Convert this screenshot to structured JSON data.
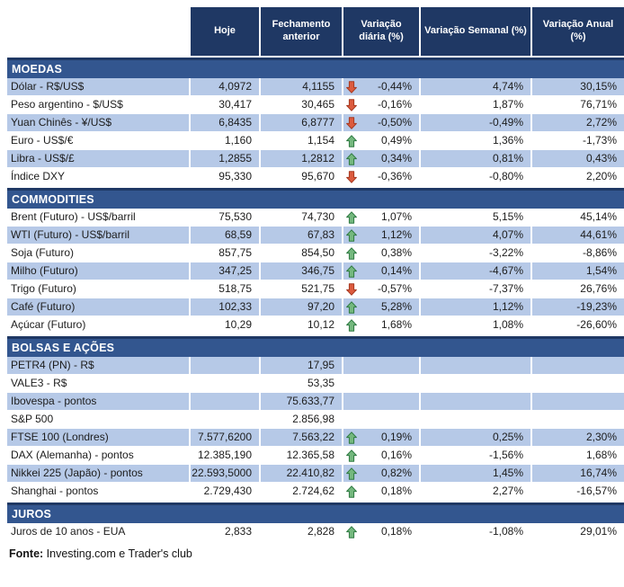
{
  "chart_data": {
    "type": "table",
    "columns": [
      "Hoje",
      "Fechamento anterior",
      "Variação diária (%)",
      "Variação Semanal (%)",
      "Variação Anual (%)"
    ],
    "sections": [
      {
        "title": "MOEDAS",
        "rows": [
          {
            "label": "Dólar - R$/US$",
            "hoje": "4,0972",
            "fechamento": "4,1155",
            "trend": "down",
            "diaria": "-0,44%",
            "semanal": "4,74%",
            "anual": "30,15%",
            "shaded": true
          },
          {
            "label": "Peso argentino - $/US$",
            "hoje": "30,417",
            "fechamento": "30,465",
            "trend": "down",
            "diaria": "-0,16%",
            "semanal": "1,87%",
            "anual": "76,71%",
            "shaded": false
          },
          {
            "label": "Yuan Chinês - ¥/US$",
            "hoje": "6,8435",
            "fechamento": "6,8777",
            "trend": "down",
            "diaria": "-0,50%",
            "semanal": "-0,49%",
            "anual": "2,72%",
            "shaded": true
          },
          {
            "label": "Euro - US$/€",
            "hoje": "1,160",
            "fechamento": "1,154",
            "trend": "up",
            "diaria": "0,49%",
            "semanal": "1,36%",
            "anual": "-1,73%",
            "shaded": false
          },
          {
            "label": "Libra - US$/£",
            "hoje": "1,2855",
            "fechamento": "1,2812",
            "trend": "up",
            "diaria": "0,34%",
            "semanal": "0,81%",
            "anual": "0,43%",
            "shaded": true
          },
          {
            "label": "Índice DXY",
            "hoje": "95,330",
            "fechamento": "95,670",
            "trend": "down",
            "diaria": "-0,36%",
            "semanal": "-0,80%",
            "anual": "2,20%",
            "shaded": false
          }
        ]
      },
      {
        "title": "COMMODITIES",
        "rows": [
          {
            "label": "Brent (Futuro) - US$/barril",
            "hoje": "75,530",
            "fechamento": "74,730",
            "trend": "up",
            "diaria": "1,07%",
            "semanal": "5,15%",
            "anual": "45,14%",
            "shaded": false
          },
          {
            "label": "WTI (Futuro) - US$/barril",
            "hoje": "68,59",
            "fechamento": "67,83",
            "trend": "up",
            "diaria": "1,12%",
            "semanal": "4,07%",
            "anual": "44,61%",
            "shaded": true
          },
          {
            "label": "Soja (Futuro)",
            "hoje": "857,75",
            "fechamento": "854,50",
            "trend": "up",
            "diaria": "0,38%",
            "semanal": "-3,22%",
            "anual": "-8,86%",
            "shaded": false
          },
          {
            "label": "Milho (Futuro)",
            "hoje": "347,25",
            "fechamento": "346,75",
            "trend": "up",
            "diaria": "0,14%",
            "semanal": "-4,67%",
            "anual": "1,54%",
            "shaded": true
          },
          {
            "label": "Trigo (Futuro)",
            "hoje": "518,75",
            "fechamento": "521,75",
            "trend": "down",
            "diaria": "-0,57%",
            "semanal": "-7,37%",
            "anual": "26,76%",
            "shaded": false
          },
          {
            "label": "Café (Futuro)",
            "hoje": "102,33",
            "fechamento": "97,20",
            "trend": "up",
            "diaria": "5,28%",
            "semanal": "1,12%",
            "anual": "-19,23%",
            "shaded": true
          },
          {
            "label": "Açúcar (Futuro)",
            "hoje": "10,29",
            "fechamento": "10,12",
            "trend": "up",
            "diaria": "1,68%",
            "semanal": "1,08%",
            "anual": "-26,60%",
            "shaded": false
          }
        ]
      },
      {
        "title": "BOLSAS E AÇÕES",
        "rows": [
          {
            "label": "PETR4 (PN) - R$",
            "hoje": "",
            "fechamento": "17,95",
            "trend": "",
            "diaria": "",
            "semanal": "",
            "anual": "",
            "shaded": true
          },
          {
            "label": "VALE3 - R$",
            "hoje": "",
            "fechamento": "53,35",
            "trend": "",
            "diaria": "",
            "semanal": "",
            "anual": "",
            "shaded": false
          },
          {
            "label": "Ibovespa - pontos",
            "hoje": "",
            "fechamento": "75.633,77",
            "trend": "",
            "diaria": "",
            "semanal": "",
            "anual": "",
            "shaded": true
          },
          {
            "label": "S&P 500",
            "hoje": "",
            "fechamento": "2.856,98",
            "trend": "",
            "diaria": "",
            "semanal": "",
            "anual": "",
            "shaded": false
          },
          {
            "label": "FTSE 100 (Londres)",
            "hoje": "7.577,6200",
            "fechamento": "7.563,22",
            "trend": "up",
            "diaria": "0,19%",
            "semanal": "0,25%",
            "anual": "2,30%",
            "shaded": true
          },
          {
            "label": "DAX (Alemanha) - pontos",
            "hoje": "12.385,190",
            "fechamento": "12.365,58",
            "trend": "up",
            "diaria": "0,16%",
            "semanal": "-1,56%",
            "anual": "1,68%",
            "shaded": false
          },
          {
            "label": "Nikkei 225 (Japão) - pontos",
            "hoje": "22.593,5000",
            "fechamento": "22.410,82",
            "trend": "up",
            "diaria": "0,82%",
            "semanal": "1,45%",
            "anual": "16,74%",
            "shaded": true
          },
          {
            "label": "Shanghai - pontos",
            "hoje": "2.729,430",
            "fechamento": "2.724,62",
            "trend": "up",
            "diaria": "0,18%",
            "semanal": "2,27%",
            "anual": "-16,57%",
            "shaded": false
          }
        ]
      },
      {
        "title": "JUROS",
        "rows": [
          {
            "label": "Juros de 10 anos - EUA",
            "hoje": "2,833",
            "fechamento": "2,828",
            "trend": "up",
            "diaria": "0,18%",
            "semanal": "-1,08%",
            "anual": "29,01%",
            "shaded": false
          }
        ]
      }
    ],
    "source": "Fonte: Investing.com e Trader's club"
  },
  "footer": {
    "label": "Fonte:",
    "text": " Investing.com e Trader's club"
  },
  "colors": {
    "header_bg": "#1F3864",
    "section_bg": "#33568F",
    "band_row_bg": "#B6C9E7",
    "up_arrow_fill": "#74B87E",
    "up_arrow_stroke": "#2F7A43",
    "down_arrow_fill": "#DC5B3E",
    "down_arrow_stroke": "#A63A22"
  }
}
